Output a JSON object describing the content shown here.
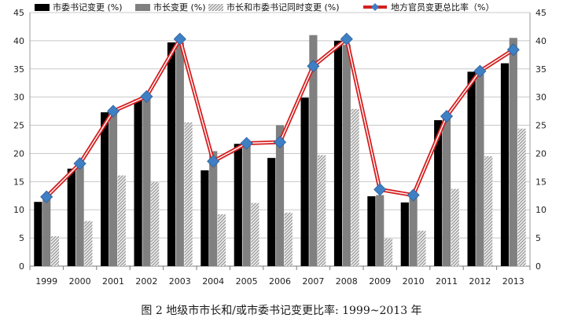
{
  "chart_data": {
    "type": "bar",
    "categories": [
      "1999",
      "2000",
      "2001",
      "2002",
      "2003",
      "2004",
      "2005",
      "2006",
      "2007",
      "2008",
      "2009",
      "2010",
      "2011",
      "2012",
      "2013"
    ],
    "series": [
      {
        "name": "市委书记变更 (%)",
        "type": "bar",
        "color": "#000000",
        "values": [
          11.4,
          17.3,
          27.3,
          29.6,
          39.7,
          17.0,
          21.7,
          19.2,
          29.9,
          40.0,
          12.4,
          11.3,
          25.9,
          34.5,
          36.0
        ]
      },
      {
        "name": "市长变更 (%)",
        "type": "bar",
        "color": "#808080",
        "values": [
          12.4,
          18.1,
          27.2,
          29.7,
          39.7,
          20.4,
          22.2,
          25.0,
          41.0,
          39.3,
          12.6,
          12.7,
          26.9,
          34.2,
          40.5
        ]
      },
      {
        "name": "市长和市委书记同时变更 (%)",
        "type": "bar",
        "color": "#bdbdbd",
        "pattern": "hatch",
        "values": [
          5.3,
          8.0,
          16.1,
          14.9,
          25.5,
          9.2,
          11.2,
          9.5,
          19.7,
          27.9,
          4.9,
          6.3,
          13.7,
          19.5,
          24.4
        ]
      },
      {
        "name": "地方官员变更总比率（%）",
        "type": "line",
        "color": "#d42020",
        "marker_color": "#3f7fc4",
        "values": [
          12.3,
          18.2,
          27.5,
          30.1,
          40.3,
          18.6,
          21.8,
          22.0,
          35.5,
          40.3,
          13.6,
          12.6,
          26.6,
          34.6,
          38.4
        ]
      }
    ],
    "ylim": [
      0,
      45
    ],
    "yticks": [
      0,
      5,
      10,
      15,
      20,
      25,
      30,
      35,
      40,
      45
    ],
    "dual_y_axis": true,
    "grid": true,
    "legend_position": "top"
  },
  "caption": "图 2   地级市市长和/或市委书记变更比率: 1999~2013 年"
}
